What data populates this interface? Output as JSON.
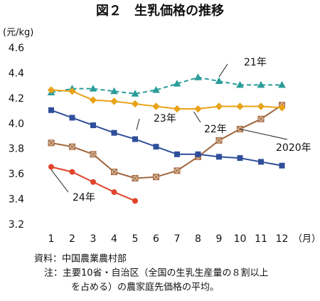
{
  "chart_data": {
    "type": "line",
    "title": "図２　生乳価格の推移",
    "y_label": "(元/kg)",
    "x_label": "（月）",
    "categories": [
      1,
      2,
      3,
      4,
      5,
      6,
      7,
      8,
      9,
      10,
      11,
      12
    ],
    "ylim": [
      3.2,
      4.6
    ],
    "yticks": [
      3.2,
      3.4,
      3.6,
      3.8,
      {
        "value": 4,
        "label": "4.0"
      },
      4.2,
      4.4,
      4.6
    ],
    "series": [
      {
        "name": "2020年",
        "color": "#a0643c",
        "marker": "xsquare",
        "values": [
          3.85,
          3.82,
          3.76,
          3.62,
          3.57,
          3.58,
          3.63,
          3.74,
          3.87,
          3.96,
          4.04,
          4.15
        ]
      },
      {
        "name": "21年",
        "color": "#2a9d9a",
        "marker": "triangle",
        "dashed": true,
        "values": [
          4.25,
          4.28,
          4.28,
          4.26,
          4.24,
          4.27,
          4.32,
          4.37,
          4.34,
          4.31,
          4.31,
          4.31
        ]
      },
      {
        "name": "22年",
        "color": "#e8a317",
        "marker": "diamond",
        "values": [
          4.27,
          4.26,
          4.19,
          4.18,
          4.16,
          4.14,
          4.12,
          4.12,
          4.14,
          4.14,
          4.14,
          4.13
        ]
      },
      {
        "name": "23年",
        "color": "#2f4f9a",
        "marker": "square",
        "values": [
          4.11,
          4.05,
          3.99,
          3.93,
          3.88,
          3.82,
          3.76,
          3.76,
          3.74,
          3.73,
          3.7,
          3.67
        ]
      },
      {
        "name": "24年",
        "color": "#e0442a",
        "marker": "circle",
        "values": [
          3.66,
          3.62,
          3.54,
          3.46,
          3.39,
          null,
          null,
          null,
          null,
          null,
          null,
          null
        ]
      }
    ],
    "notes": [
      "資料：中国農業農村部",
      "注：主要10省・自治区（全国の生乳生産量の８割以上",
      "を占める）の農家庭先価格の平均。"
    ]
  }
}
